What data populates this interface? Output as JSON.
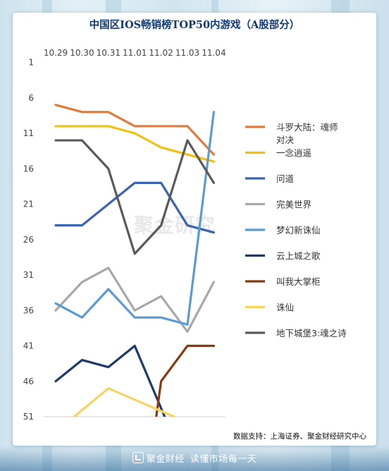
{
  "chart_data": {
    "type": "line",
    "title": "中国区IOS畅销榜TOP50内游戏（A股部分）",
    "categories": [
      "10.29",
      "10.30",
      "10.31",
      "11.01",
      "11.02",
      "11.03",
      "11.04"
    ],
    "y_ticks": [
      1,
      6,
      11,
      16,
      21,
      26,
      31,
      36,
      41,
      46,
      51
    ],
    "ylim": [
      1,
      51
    ],
    "y_inverted": true,
    "grid": false,
    "legend_position": "right",
    "series": [
      {
        "name": "斗罗大陆：魂师对决",
        "color": "#e07b39",
        "values": [
          7,
          8,
          8,
          10,
          10,
          10,
          14
        ]
      },
      {
        "name": "一念逍遥",
        "color": "#f2c010",
        "values": [
          10,
          10,
          10,
          11,
          13,
          14,
          15
        ]
      },
      {
        "name": "问道",
        "color": "#3a64b0",
        "values": [
          24,
          24,
          21,
          18,
          18,
          24,
          25
        ]
      },
      {
        "name": "完美世界",
        "color": "#a8a8a8",
        "values": [
          36,
          32,
          30,
          36,
          34,
          39,
          32
        ]
      },
      {
        "name": "梦幻新诛仙",
        "color": "#5b9bd5",
        "values": [
          35,
          37,
          33,
          37,
          37,
          38,
          8
        ]
      },
      {
        "name": "云上城之歌",
        "color": "#1e3a6b",
        "values": [
          46,
          43,
          44,
          41,
          null,
          null,
          null
        ],
        "exit_to": {
          "x": 4.25,
          "y": 52
        }
      },
      {
        "name": "叫我大掌柜",
        "color": "#8b3a0f",
        "values": [
          null,
          null,
          null,
          null,
          46,
          41,
          41
        ],
        "enter_from": {
          "x": 3.78,
          "y": 52
        }
      },
      {
        "name": "诛仙",
        "color": "#f7d462",
        "values": [
          null,
          null,
          47,
          null,
          null,
          null,
          null
        ],
        "enter_from": {
          "x": 0.7,
          "y": 51
        },
        "exit_to": {
          "x": 4.5,
          "y": 51
        }
      },
      {
        "name": "地下城堡3:魂之诗",
        "color": "#5a5a5a",
        "values": [
          12,
          12,
          16,
          28,
          24,
          12,
          18
        ]
      }
    ],
    "legend_labels": [
      [
        "斗罗大陆：魂师",
        "对决"
      ],
      [
        "一念逍遥"
      ],
      [
        "问道"
      ],
      [
        "完美世界"
      ],
      [
        "梦幻新诛仙"
      ],
      [
        "云上城之歌"
      ],
      [
        "叫我大掌柜"
      ],
      [
        "诛仙"
      ],
      [
        "地下城堡3:魂之诗"
      ]
    ]
  },
  "watermark": "聚金研究",
  "source_text": "数据支持：上海证券、聚金财经研究中心",
  "footer": {
    "brand": "聚金财经",
    "slogan": "读懂市场每一天"
  }
}
